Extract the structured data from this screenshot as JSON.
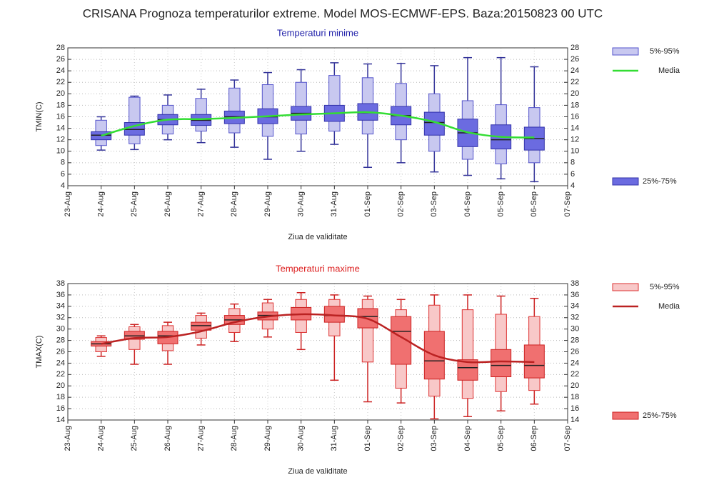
{
  "title": "CRISANA  Prognoza temperaturilor extreme.  Model MOS-ECMWF-EPS. Baza:20150823 00 UTC",
  "chart_data": [
    {
      "type": "box",
      "title": "Temperaturi minime",
      "title_color": "#2222aa",
      "ylabel": "TMIN(C)",
      "xlabel": "Ziua de validitate",
      "categories": [
        "23-Aug",
        "24-Aug",
        "25-Aug",
        "26-Aug",
        "27-Aug",
        "28-Aug",
        "29-Aug",
        "30-Aug",
        "31-Aug",
        "01-Sep",
        "02-Sep",
        "03-Sep",
        "04-Sep",
        "05-Sep",
        "06-Sep",
        "07-Sep"
      ],
      "ylim": [
        4,
        28
      ],
      "yticks": [
        4,
        6,
        8,
        10,
        12,
        14,
        16,
        18,
        20,
        22,
        24,
        26,
        28
      ],
      "y2lim": [
        4,
        28
      ],
      "y2ticks": [
        4,
        6,
        8,
        10,
        12,
        14,
        16,
        18,
        20,
        22,
        24,
        26,
        28
      ],
      "grid": true,
      "whisker_color": "#333399",
      "min": [
        null,
        10.2,
        10.3,
        12,
        11.5,
        10.7,
        8.6,
        10,
        11.2,
        7.2,
        8,
        6.4,
        5.8,
        5.2,
        4.7,
        null
      ],
      "max": [
        null,
        16,
        19.6,
        19.8,
        20.8,
        22.4,
        23.7,
        24.2,
        25.4,
        25.2,
        25.3,
        24.9,
        26.3,
        26.3,
        24.7,
        null
      ],
      "median": [
        null,
        12.8,
        13.8,
        15.5,
        15.4,
        16,
        16,
        16.6,
        16.6,
        16.7,
        16.2,
        15,
        13.2,
        12,
        12.2,
        null
      ],
      "series": [
        {
          "name": "5%-95%",
          "color": "#c8c8f0",
          "edge": "#5555cc",
          "low": [
            null,
            11,
            11.3,
            13,
            13.5,
            13.2,
            12.6,
            13,
            13.5,
            13,
            12,
            10,
            8.6,
            7.8,
            8,
            null
          ],
          "high": [
            null,
            15.4,
            19.4,
            18,
            19.2,
            21,
            21.6,
            22,
            23.2,
            22.8,
            21.8,
            20,
            18.8,
            18.1,
            17.6,
            null
          ]
        },
        {
          "name": "Media",
          "color": "#33dd33",
          "values": [
            null,
            12.7,
            14.4,
            15.5,
            15.6,
            15.8,
            16.1,
            16.4,
            16.6,
            16.8,
            16.2,
            15.1,
            13.3,
            12.5,
            12.4,
            null
          ]
        },
        {
          "name": "25%-75%",
          "color": "#6b6be0",
          "edge": "#3333aa",
          "low": [
            null,
            12,
            12.8,
            14.6,
            14.5,
            14.8,
            14.8,
            15.4,
            15.2,
            15.4,
            14.6,
            12.8,
            10.8,
            10.4,
            10.2,
            null
          ],
          "high": [
            null,
            13.4,
            15,
            16.4,
            16.4,
            17,
            17.4,
            17.8,
            18,
            18.3,
            17.8,
            16.8,
            15.6,
            14.6,
            14.2,
            null
          ]
        }
      ]
    },
    {
      "type": "box",
      "title": "Temperaturi maxime",
      "title_color": "#dd2222",
      "ylabel": "TMAX(C)",
      "xlabel": "Ziua de validitate",
      "categories": [
        "23-Aug",
        "24-Aug",
        "25-Aug",
        "26-Aug",
        "27-Aug",
        "28-Aug",
        "29-Aug",
        "30-Aug",
        "31-Aug",
        "01-Sep",
        "02-Sep",
        "03-Sep",
        "04-Sep",
        "05-Sep",
        "06-Sep",
        "07-Sep"
      ],
      "ylim": [
        14,
        38
      ],
      "yticks": [
        14,
        16,
        18,
        20,
        22,
        24,
        26,
        28,
        30,
        32,
        34,
        36,
        38
      ],
      "y2lim": [
        14,
        38
      ],
      "y2ticks": [
        14,
        16,
        18,
        20,
        22,
        24,
        26,
        28,
        30,
        32,
        34,
        36,
        38
      ],
      "grid": true,
      "whisker_color": "#cc2222",
      "min": [
        null,
        25.2,
        23.8,
        23.8,
        27.2,
        27.8,
        28.6,
        26.4,
        21,
        17.2,
        17,
        14.2,
        14.6,
        15.6,
        16.8,
        null
      ],
      "max": [
        null,
        28.8,
        30.8,
        31.2,
        32.8,
        34.4,
        35.2,
        36.4,
        36,
        35.8,
        35.2,
        36,
        36,
        35.8,
        35.4,
        null
      ],
      "median": [
        null,
        27.4,
        28.8,
        28.8,
        30.6,
        31.6,
        32.4,
        32.6,
        32.4,
        32.2,
        29.6,
        24.4,
        23.2,
        23.6,
        23.6,
        null
      ],
      "series": [
        {
          "name": "5%-95%",
          "color": "#f8c8c8",
          "edge": "#dd3333",
          "low": [
            null,
            26,
            26.4,
            26.2,
            28.4,
            29.4,
            30,
            29.4,
            28.8,
            24.2,
            19.6,
            18.2,
            17.8,
            19,
            19.2,
            null
          ],
          "high": [
            null,
            28.5,
            30.4,
            30.6,
            32.4,
            33.6,
            34.6,
            35.2,
            35.2,
            35.2,
            33.4,
            34.2,
            33.4,
            32.6,
            32.2,
            null
          ]
        },
        {
          "name": "Media",
          "color": "#bb2222",
          "values": [
            null,
            27.4,
            28.4,
            28.6,
            29.6,
            31.2,
            32.2,
            32.6,
            32.4,
            31.8,
            28.6,
            25.4,
            24.2,
            24.3,
            24.2,
            null
          ]
        },
        {
          "name": "25%-75%",
          "color": "#f07070",
          "edge": "#cc2222",
          "low": [
            null,
            27,
            28.2,
            27.4,
            29.8,
            30.8,
            31.6,
            31.6,
            31.2,
            30.2,
            23.8,
            21.2,
            21,
            21.6,
            21.4,
            null
          ],
          "high": [
            null,
            27.8,
            29.6,
            29.6,
            31.2,
            32.4,
            33,
            33.8,
            34,
            33.6,
            32.2,
            29.6,
            24.6,
            26.4,
            27.2,
            null
          ]
        }
      ]
    }
  ]
}
